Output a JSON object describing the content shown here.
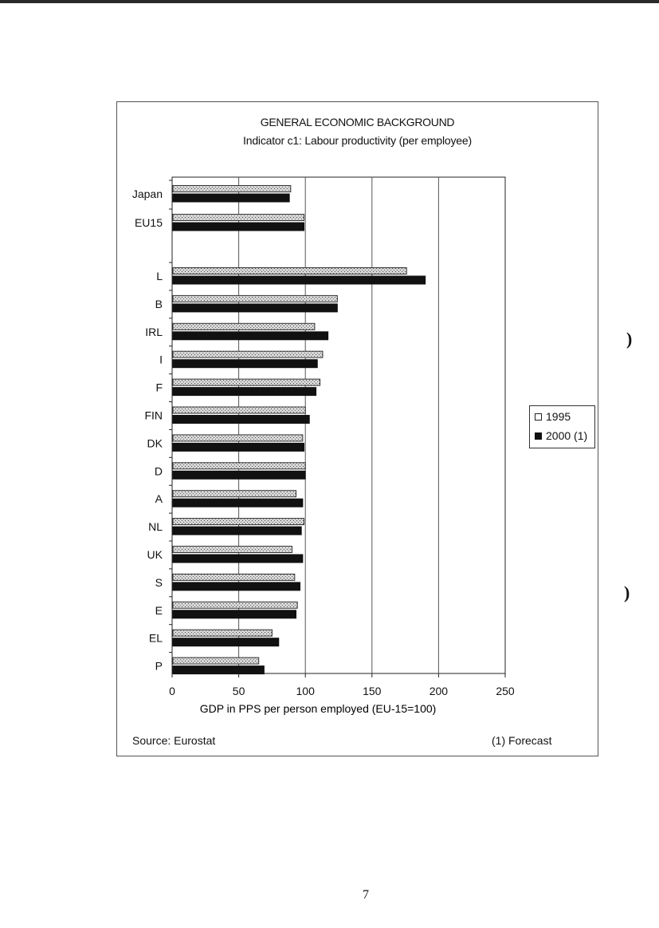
{
  "chart_data": {
    "type": "bar",
    "orientation": "horizontal",
    "title": "GENERAL ECONOMIC BACKGROUND",
    "subtitle": "Indicator c1: Labour productivity (per employee)",
    "xlabel": "GDP in PPS per person employed (EU-15=100)",
    "xlim": [
      0,
      250
    ],
    "xticks": [
      "0",
      "50",
      "100",
      "150",
      "200",
      "250"
    ],
    "grid": true,
    "legend_position": "right",
    "categories": [
      "Japan",
      "EU15",
      "L",
      "B",
      "IRL",
      "I",
      "F",
      "FIN",
      "DK",
      "D",
      "A",
      "NL",
      "UK",
      "S",
      "E",
      "EL",
      "P"
    ],
    "series": [
      {
        "name": "1995",
        "values": [
          89,
          99,
          176,
          124,
          107,
          113,
          111,
          100,
          98,
          100,
          93,
          99,
          90,
          92,
          94,
          75,
          65
        ]
      },
      {
        "name": "2000 (1)",
        "values": [
          88,
          99,
          190,
          124,
          117,
          109,
          108,
          103,
          99,
          100,
          98,
          97,
          98,
          96,
          93,
          80,
          69
        ]
      }
    ],
    "colors": {
      "1995": "#c8c8c8",
      "2000": "#111111",
      "grid": "#666666"
    }
  },
  "header": {
    "title": "GENERAL ECONOMIC BACKGROUND",
    "subtitle": "Indicator c1: Labour productivity (per employee)"
  },
  "legend": {
    "items": [
      "1995",
      "2000 (1)"
    ]
  },
  "footer": {
    "source": "Source: Eurostat",
    "note": "(1) Forecast"
  },
  "page": {
    "number": "7"
  }
}
